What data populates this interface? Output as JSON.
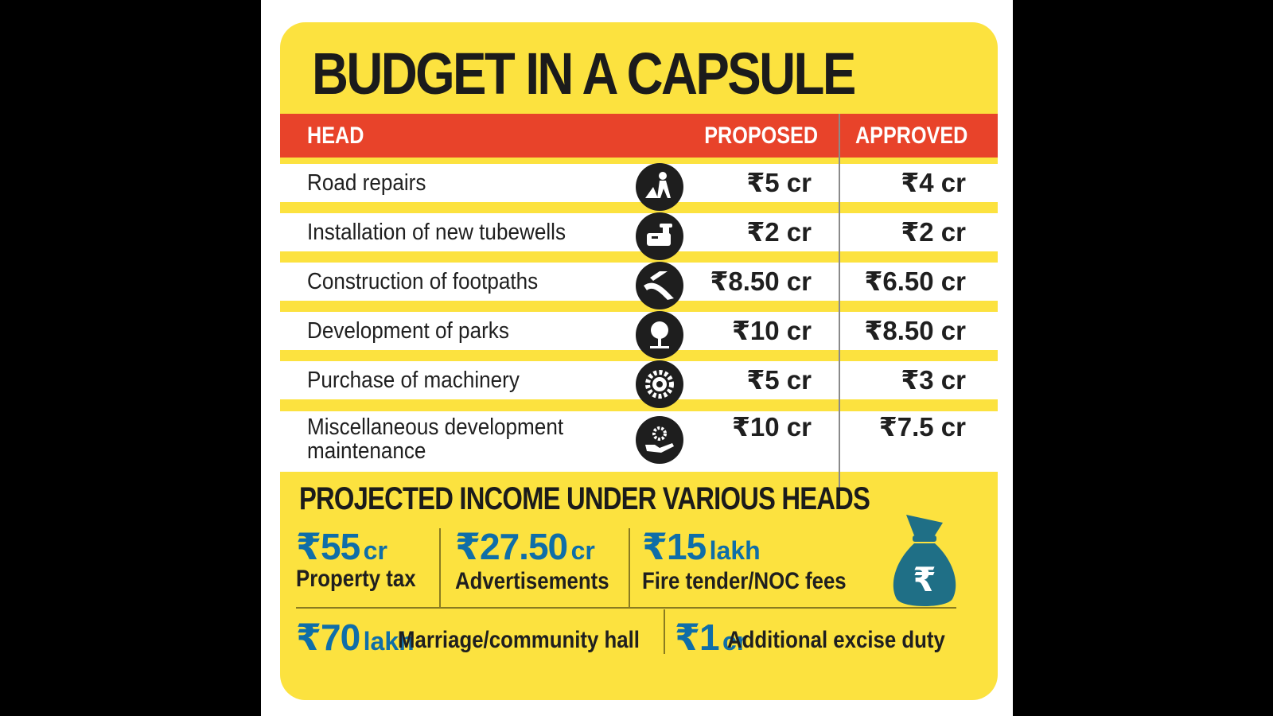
{
  "title": "BUDGET IN A CAPSULE",
  "table": {
    "headers": {
      "head": "HEAD",
      "proposed": "PROPOSED",
      "approved": "APPROVED"
    },
    "rows": [
      {
        "head": "Road repairs",
        "icon": "road-worker-icon",
        "proposed": "₹5 cr",
        "approved": "₹4 cr"
      },
      {
        "head": "Installation of new tubewells",
        "icon": "water-tap-icon",
        "proposed": "₹2 cr",
        "approved": "₹2 cr"
      },
      {
        "head": "Construction of footpaths",
        "icon": "road-path-icon",
        "proposed": "₹8.50 cr",
        "approved": "₹6.50 cr"
      },
      {
        "head": "Development of parks",
        "icon": "tree-icon",
        "proposed": "₹10 cr",
        "approved": "₹8.50 cr"
      },
      {
        "head": "Purchase of machinery",
        "icon": "gear-icon",
        "proposed": "₹5 cr",
        "approved": "₹3 cr"
      },
      {
        "head": "Miscellaneous development",
        "head_line2": "maintenance",
        "icon": "hand-gear-icon",
        "proposed": "₹10 cr",
        "approved": "₹7.5 cr"
      }
    ]
  },
  "income": {
    "title": "PROJECTED INCOME UNDER VARIOUS HEADS",
    "items": [
      {
        "amount": "₹55",
        "unit": "cr",
        "label": "Property tax"
      },
      {
        "amount": "₹27.50",
        "unit": "cr",
        "label": "Advertisements"
      },
      {
        "amount": "₹15",
        "unit": "lakh",
        "label": "Fire tender/NOC fees"
      },
      {
        "amount": "₹70",
        "unit": "lakh",
        "label": "Marriage/community hall"
      },
      {
        "amount": "₹1",
        "unit": "cr",
        "label": "Additional excise duty"
      }
    ],
    "icon": "money-bag-rupee-icon",
    "bag_symbol": "₹"
  },
  "colors": {
    "background": "#fce23f",
    "header_bar": "#e8432a",
    "amount_blue": "#0f6ea8",
    "bag_teal": "#1f6f86"
  }
}
